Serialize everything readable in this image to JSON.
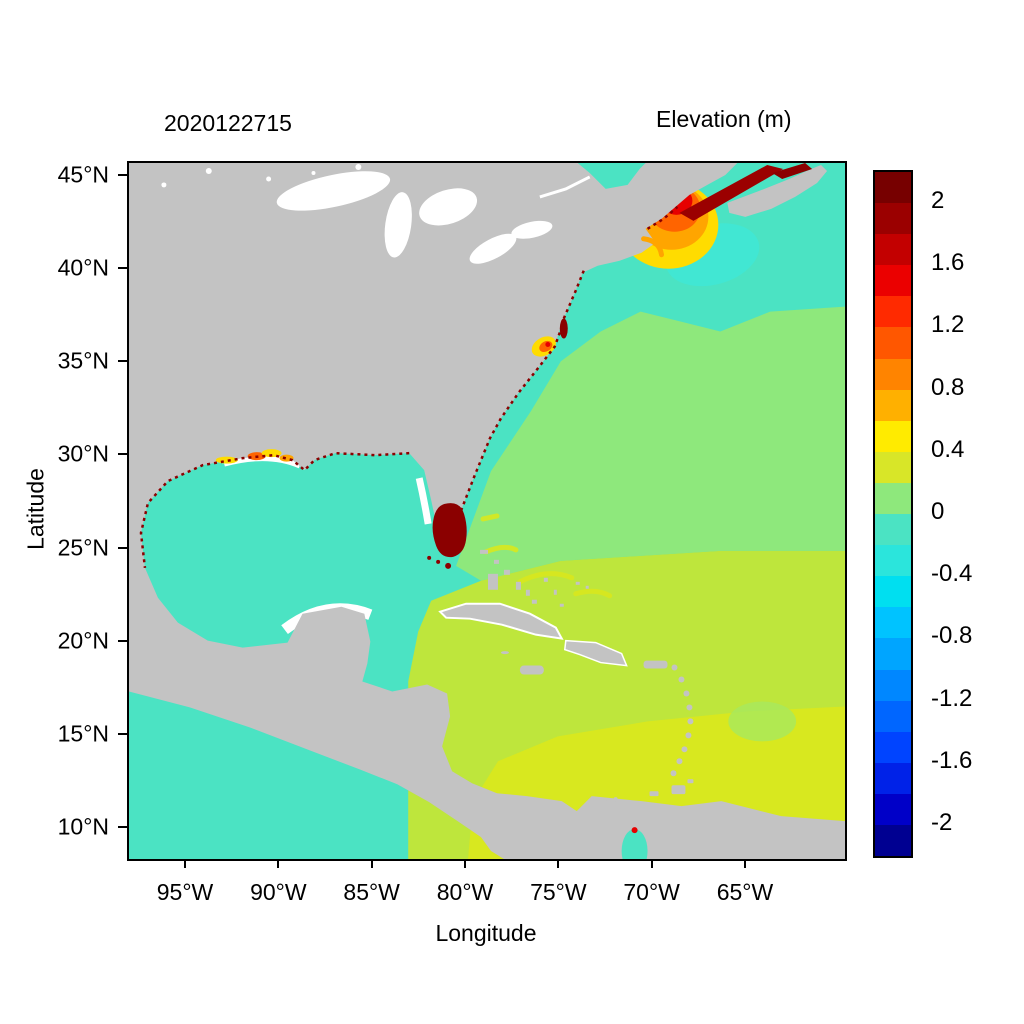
{
  "figure": {
    "timestamp": "2020122715",
    "colorbar_title": "Elevation (m)",
    "xlabel": "Longitude",
    "ylabel": "Latitude"
  },
  "axes": {
    "x_ticks": [
      "95°W",
      "90°W",
      "85°W",
      "80°W",
      "75°W",
      "70°W",
      "65°W"
    ],
    "y_ticks": [
      "45°N",
      "40°N",
      "35°N",
      "30°N",
      "25°N",
      "20°N",
      "15°N",
      "10°N"
    ]
  },
  "colorbar": {
    "tick_labels": [
      "2",
      "1.6",
      "1.2",
      "0.8",
      "0.4",
      "0",
      "-0.4",
      "-0.8",
      "-1.2",
      "-1.6",
      "-2"
    ],
    "tick_values": [
      2,
      1.6,
      1.2,
      0.8,
      0.4,
      0,
      -0.4,
      -0.8,
      -1.2,
      -1.6,
      -2
    ],
    "value_min": -2.2,
    "value_max": 2.2,
    "segments": [
      "#770000",
      "#9B0000",
      "#C30000",
      "#EB0000",
      "#FF2A00",
      "#FF5700",
      "#FF8400",
      "#FFB000",
      "#FFEB00",
      "#D8E628",
      "#8EE87C",
      "#4BE3C3",
      "#2BE5DC",
      "#00DFF0",
      "#00C3FF",
      "#00A5FF",
      "#0087FF",
      "#0066FF",
      "#0044FF",
      "#0022E8",
      "#0000C8",
      "#000091"
    ]
  },
  "map_colors": {
    "land": "#C3C3C3",
    "ocean_neg": "#4BE3C3",
    "ocean_cyan": "#3CE9DC",
    "ocean_zero": "#8EE87C",
    "ocean_mid": "#BEE63C",
    "ocean_hi": "#D9E81E",
    "hot_yellow": "#FFDC00",
    "hot_amber": "#FFA500",
    "hot_orange": "#FF6400",
    "hot_red": "#E60000",
    "hot_darkred": "#9B0000",
    "extreme": "#8B0000"
  },
  "chart_data": {
    "type": "heatmap",
    "title": "Elevation (m)",
    "subtitle": "2020122715",
    "xlabel": "Longitude",
    "ylabel": "Latitude",
    "x_ticks": [
      "95°W",
      "90°W",
      "85°W",
      "80°W",
      "75°W",
      "70°W",
      "65°W"
    ],
    "y_ticks": [
      "45°N",
      "40°N",
      "35°N",
      "30°N",
      "25°N",
      "20°N",
      "15°N",
      "10°N"
    ],
    "x_range_approx": "98°W to 60°W",
    "y_range_approx": "8.5°N to 46°N",
    "colorbar": {
      "label": "Elevation (m)",
      "min": -2.2,
      "max": 2.2,
      "segment_step": 0.2,
      "tick_values": [
        2,
        1.6,
        1.2,
        0.8,
        0.4,
        0,
        -0.4,
        -0.8,
        -1.2,
        -1.6,
        -2
      ],
      "palette": "jet (dark blue → cyan → green → yellow → orange → dark red)",
      "position": "right"
    },
    "land_color": "#C3C3C3",
    "no_data_color": "#FFFFFF",
    "regions": [
      {
        "name": "Gulf of Mexico",
        "approx_elevation_m": -0.2
      },
      {
        "name": "Northeast Atlantic shelf / Nova Scotia waters",
        "approx_elevation_m": -0.3
      },
      {
        "name": "Central North Atlantic",
        "approx_elevation_m": 0.1
      },
      {
        "name": "Caribbean Sea",
        "approx_elevation_m": 0.3
      },
      {
        "name": "Southern Caribbean along Venezuela coast",
        "approx_elevation_m": 0.45
      },
      {
        "name": "Gulf of Maine hotspot (concentric yellow-orange-red)",
        "approx_elevation_m": 1.5
      },
      {
        "name": "Bay of Fundy head",
        "approx_elevation_m": 2.2
      },
      {
        "name": "South Florida / Everglades cells",
        "approx_elevation_m": 2.2
      },
      {
        "name": "Pamlico Sound NC spot",
        "approx_elevation_m": 0.8
      },
      {
        "name": "Louisiana coastal marsh patches",
        "approx_elevation_m": 0.7
      },
      {
        "name": "US East and Gulf coast drying cells (dark red speckle)",
        "approx_elevation_m": 2.0
      }
    ]
  }
}
